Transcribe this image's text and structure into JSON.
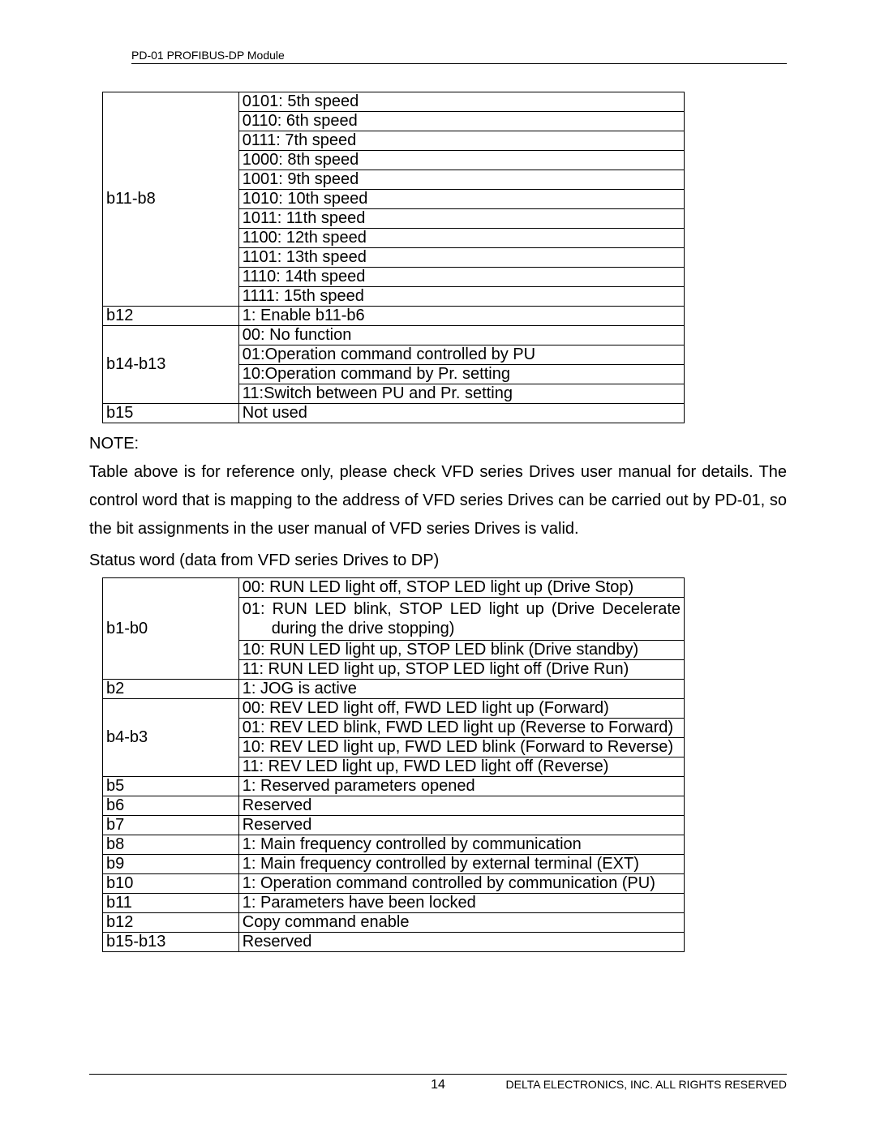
{
  "header": {
    "text": "PD-01 PROFIBUS-DP Module"
  },
  "table1": {
    "groups": [
      {
        "bits": "b11-b8",
        "rows": [
          "0101: 5th speed",
          "0110: 6th speed",
          "0111: 7th speed",
          "1000: 8th speed",
          "1001: 9th speed",
          "1010: 10th speed",
          "1011: 11th speed",
          "1100: 12th speed",
          "1101: 13th speed",
          "1110: 14th speed",
          "1111: 15th speed"
        ]
      },
      {
        "bits": "b12",
        "rows": [
          "1: Enable b11-b6"
        ]
      },
      {
        "bits": "b14-b13",
        "rows": [
          "00: No function",
          "01:Operation command controlled by PU",
          "10:Operation command by Pr. setting",
          "11:Switch between PU and Pr. setting"
        ]
      },
      {
        "bits": "b15",
        "rows": [
          "Not used"
        ]
      }
    ]
  },
  "note": {
    "label": "NOTE:",
    "body": "Table above is for reference only, please check VFD series Drives user manual for details.  The control word that is mapping to the address of VFD series Drives can be carried out by PD-01, so the bit assignments in the user manual of VFD series Drives is valid."
  },
  "status": {
    "title": "Status word (data from VFD series Drives to DP)"
  },
  "table2": {
    "groups": [
      {
        "bits": "b1-b0",
        "rows": [
          {
            "t": "00: RUN LED light off, STOP LED light up (Drive Stop)"
          },
          {
            "t": "01: RUN LED blink, STOP LED light up (Drive Decelerate",
            "cont": "during the drive stopping)",
            "justify": true
          },
          {
            "t": "10: RUN LED light up, STOP LED blink (Drive standby)"
          },
          {
            "t": "11: RUN LED light up, STOP LED light off (Drive Run)"
          }
        ]
      },
      {
        "bits": "b2",
        "rows": [
          {
            "t": "1: JOG is active"
          }
        ]
      },
      {
        "bits": "b4-b3",
        "rows": [
          {
            "t": "00: REV LED light off, FWD LED light up (Forward)"
          },
          {
            "t": "01: REV LED blink, FWD LED light up (Reverse to Forward)"
          },
          {
            "t": "10: REV LED light up, FWD LED blink (Forward to Reverse)"
          },
          {
            "t": "11: REV LED light up, FWD LED light off (Reverse)"
          }
        ]
      },
      {
        "bits": "b5",
        "rows": [
          {
            "t": "1: Reserved parameters opened"
          }
        ]
      },
      {
        "bits": "b6",
        "rows": [
          {
            "t": "Reserved"
          }
        ]
      },
      {
        "bits": "b7",
        "rows": [
          {
            "t": "Reserved"
          }
        ]
      },
      {
        "bits": "b8",
        "rows": [
          {
            "t": "1: Main frequency controlled by communication"
          }
        ]
      },
      {
        "bits": "b9",
        "rows": [
          {
            "t": "1: Main frequency controlled by external terminal (EXT)"
          }
        ]
      },
      {
        "bits": "b10",
        "rows": [
          {
            "t": "1: Operation command controlled by communication (PU)"
          }
        ]
      },
      {
        "bits": "b11",
        "rows": [
          {
            "t": "1: Parameters have been locked"
          }
        ]
      },
      {
        "bits": "b12",
        "rows": [
          {
            "t": "Copy command enable"
          }
        ]
      },
      {
        "bits": "b15-b13",
        "rows": [
          {
            "t": "Reserved"
          }
        ]
      }
    ]
  },
  "footer": {
    "page": "14",
    "right": "DELTA ELECTRONICS, INC. ALL RIGHTS RESERVED"
  }
}
